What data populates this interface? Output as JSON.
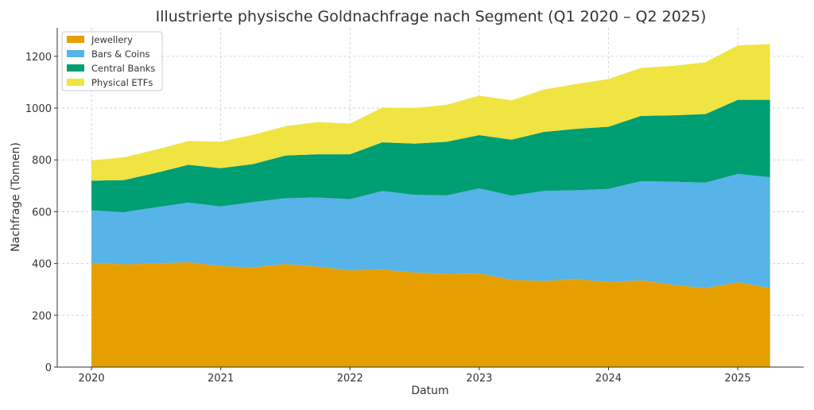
{
  "chart_data": {
    "type": "area",
    "stacked": true,
    "title": "Illustrierte physische Goldnachfrage nach Segment (Q1 2020 – Q2 2025)",
    "xlabel": "Datum",
    "ylabel": "Nachfrage (Tonnen)",
    "x": [
      "2020-Q1",
      "2020-Q2",
      "2020-Q3",
      "2020-Q4",
      "2021-Q1",
      "2021-Q2",
      "2021-Q3",
      "2021-Q4",
      "2022-Q1",
      "2022-Q2",
      "2022-Q3",
      "2022-Q4",
      "2023-Q1",
      "2023-Q2",
      "2023-Q3",
      "2023-Q4",
      "2024-Q1",
      "2024-Q2",
      "2024-Q3",
      "2024-Q4",
      "2025-Q1",
      "2025-Q2"
    ],
    "x_ticks": [
      "2020",
      "2021",
      "2022",
      "2023",
      "2024",
      "2025"
    ],
    "y_ticks": [
      0,
      200,
      400,
      600,
      800,
      1000,
      1200
    ],
    "ylim": [
      0,
      1310
    ],
    "grid": true,
    "legend_position": "top-left",
    "series": [
      {
        "name": "Jewellery",
        "color": "#E69F00",
        "values": [
          403,
          397,
          400,
          405,
          390,
          385,
          398,
          388,
          373,
          377,
          365,
          360,
          362,
          337,
          332,
          340,
          328,
          335,
          318,
          305,
          328,
          305
        ]
      },
      {
        "name": "Bars & Coins",
        "color": "#56B4E9",
        "values": [
          202,
          201,
          217,
          230,
          230,
          252,
          254,
          267,
          275,
          303,
          300,
          303,
          328,
          325,
          348,
          343,
          360,
          383,
          398,
          407,
          418,
          428
        ]
      },
      {
        "name": "Central Banks",
        "color": "#009E73",
        "values": [
          115,
          124,
          133,
          146,
          148,
          147,
          165,
          167,
          174,
          188,
          198,
          207,
          206,
          216,
          228,
          237,
          240,
          252,
          256,
          265,
          286,
          299
        ]
      },
      {
        "name": "Physical ETFs",
        "color": "#F0E442",
        "values": [
          78,
          88,
          90,
          92,
          102,
          113,
          113,
          124,
          118,
          134,
          137,
          143,
          152,
          152,
          164,
          173,
          184,
          185,
          191,
          200,
          210,
          215
        ]
      }
    ]
  }
}
